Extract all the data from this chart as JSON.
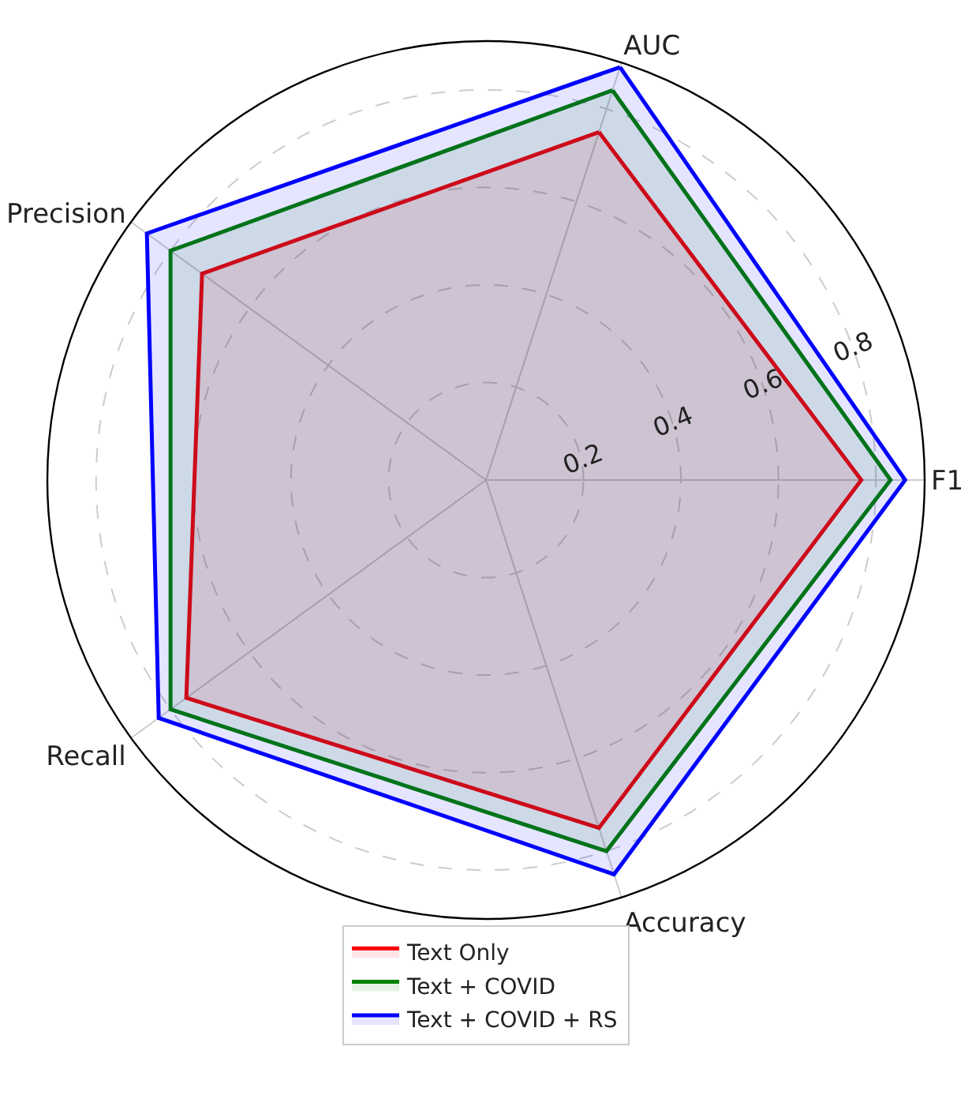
{
  "chart_data": {
    "type": "radar",
    "categories": [
      "AUC",
      "F1",
      "Accuracy",
      "Recall",
      "Precision"
    ],
    "series": [
      {
        "name": "Text Only",
        "color": "#ff0000",
        "values": [
          0.75,
          0.77,
          0.75,
          0.76,
          0.72
        ]
      },
      {
        "name": "Text + COVID",
        "color": "#008000",
        "values": [
          0.84,
          0.83,
          0.8,
          0.8,
          0.8
        ]
      },
      {
        "name": "Text + COVID + RS",
        "color": "#0000ff",
        "values": [
          0.89,
          0.86,
          0.85,
          0.83,
          0.86
        ]
      }
    ],
    "ylim": [
      0,
      0.9
    ],
    "yticks": [
      0.2,
      0.4,
      0.6,
      0.8
    ],
    "grid": true,
    "legend": "bottom"
  }
}
